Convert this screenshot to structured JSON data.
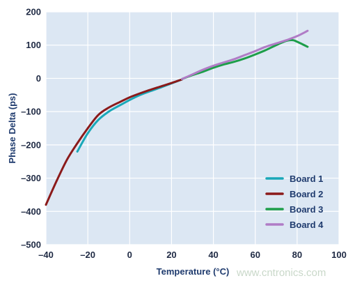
{
  "chart_data": {
    "type": "line",
    "title": "",
    "xlabel": "Temperature (°C)",
    "ylabel": "Phase Delta (ps)",
    "xlim": [
      -40,
      100
    ],
    "ylim": [
      -500,
      200
    ],
    "x_ticks": [
      -40,
      -20,
      0,
      20,
      40,
      60,
      80,
      100
    ],
    "x_tick_labels": [
      "–40",
      "–20",
      "0",
      "20",
      "40",
      "60",
      "80",
      "100"
    ],
    "y_ticks": [
      -500,
      -400,
      -300,
      -200,
      -100,
      0,
      100,
      200
    ],
    "y_tick_labels": [
      "–500",
      "–400",
      "–300",
      "–200",
      "–100",
      "0",
      "100",
      "200"
    ],
    "grid": true,
    "legend_position": "bottom-right",
    "series": [
      {
        "name": "Board 1",
        "color": "#1aa8b8",
        "points": [
          [
            -25,
            -220
          ],
          [
            -20,
            -165
          ],
          [
            -15,
            -125
          ],
          [
            -10,
            -100
          ],
          [
            -5,
            -82
          ],
          [
            0,
            -65
          ],
          [
            5,
            -50
          ],
          [
            10,
            -38
          ],
          [
            15,
            -27
          ],
          [
            20,
            -15
          ],
          [
            25,
            -3
          ]
        ]
      },
      {
        "name": "Board 2",
        "color": "#8b1a1a",
        "points": [
          [
            -40,
            -380
          ],
          [
            -35,
            -310
          ],
          [
            -30,
            -245
          ],
          [
            -25,
            -195
          ],
          [
            -20,
            -150
          ],
          [
            -15,
            -110
          ],
          [
            -10,
            -88
          ],
          [
            -5,
            -72
          ],
          [
            0,
            -57
          ],
          [
            5,
            -45
          ],
          [
            10,
            -34
          ],
          [
            15,
            -24
          ],
          [
            20,
            -14
          ],
          [
            25,
            -3
          ]
        ]
      },
      {
        "name": "Board 3",
        "color": "#1e9e4a",
        "points": [
          [
            25,
            -2
          ],
          [
            30,
            10
          ],
          [
            35,
            20
          ],
          [
            40,
            32
          ],
          [
            45,
            42
          ],
          [
            50,
            50
          ],
          [
            55,
            60
          ],
          [
            60,
            72
          ],
          [
            65,
            85
          ],
          [
            70,
            100
          ],
          [
            75,
            113
          ],
          [
            78,
            115
          ],
          [
            80,
            110
          ],
          [
            85,
            95
          ]
        ]
      },
      {
        "name": "Board 4",
        "color": "#b07cc6",
        "points": [
          [
            25,
            -2
          ],
          [
            30,
            12
          ],
          [
            35,
            26
          ],
          [
            40,
            38
          ],
          [
            45,
            48
          ],
          [
            50,
            58
          ],
          [
            55,
            70
          ],
          [
            60,
            82
          ],
          [
            65,
            95
          ],
          [
            70,
            105
          ],
          [
            75,
            115
          ],
          [
            80,
            127
          ],
          [
            85,
            143
          ]
        ]
      }
    ]
  },
  "watermark": "www.cntronics.com"
}
